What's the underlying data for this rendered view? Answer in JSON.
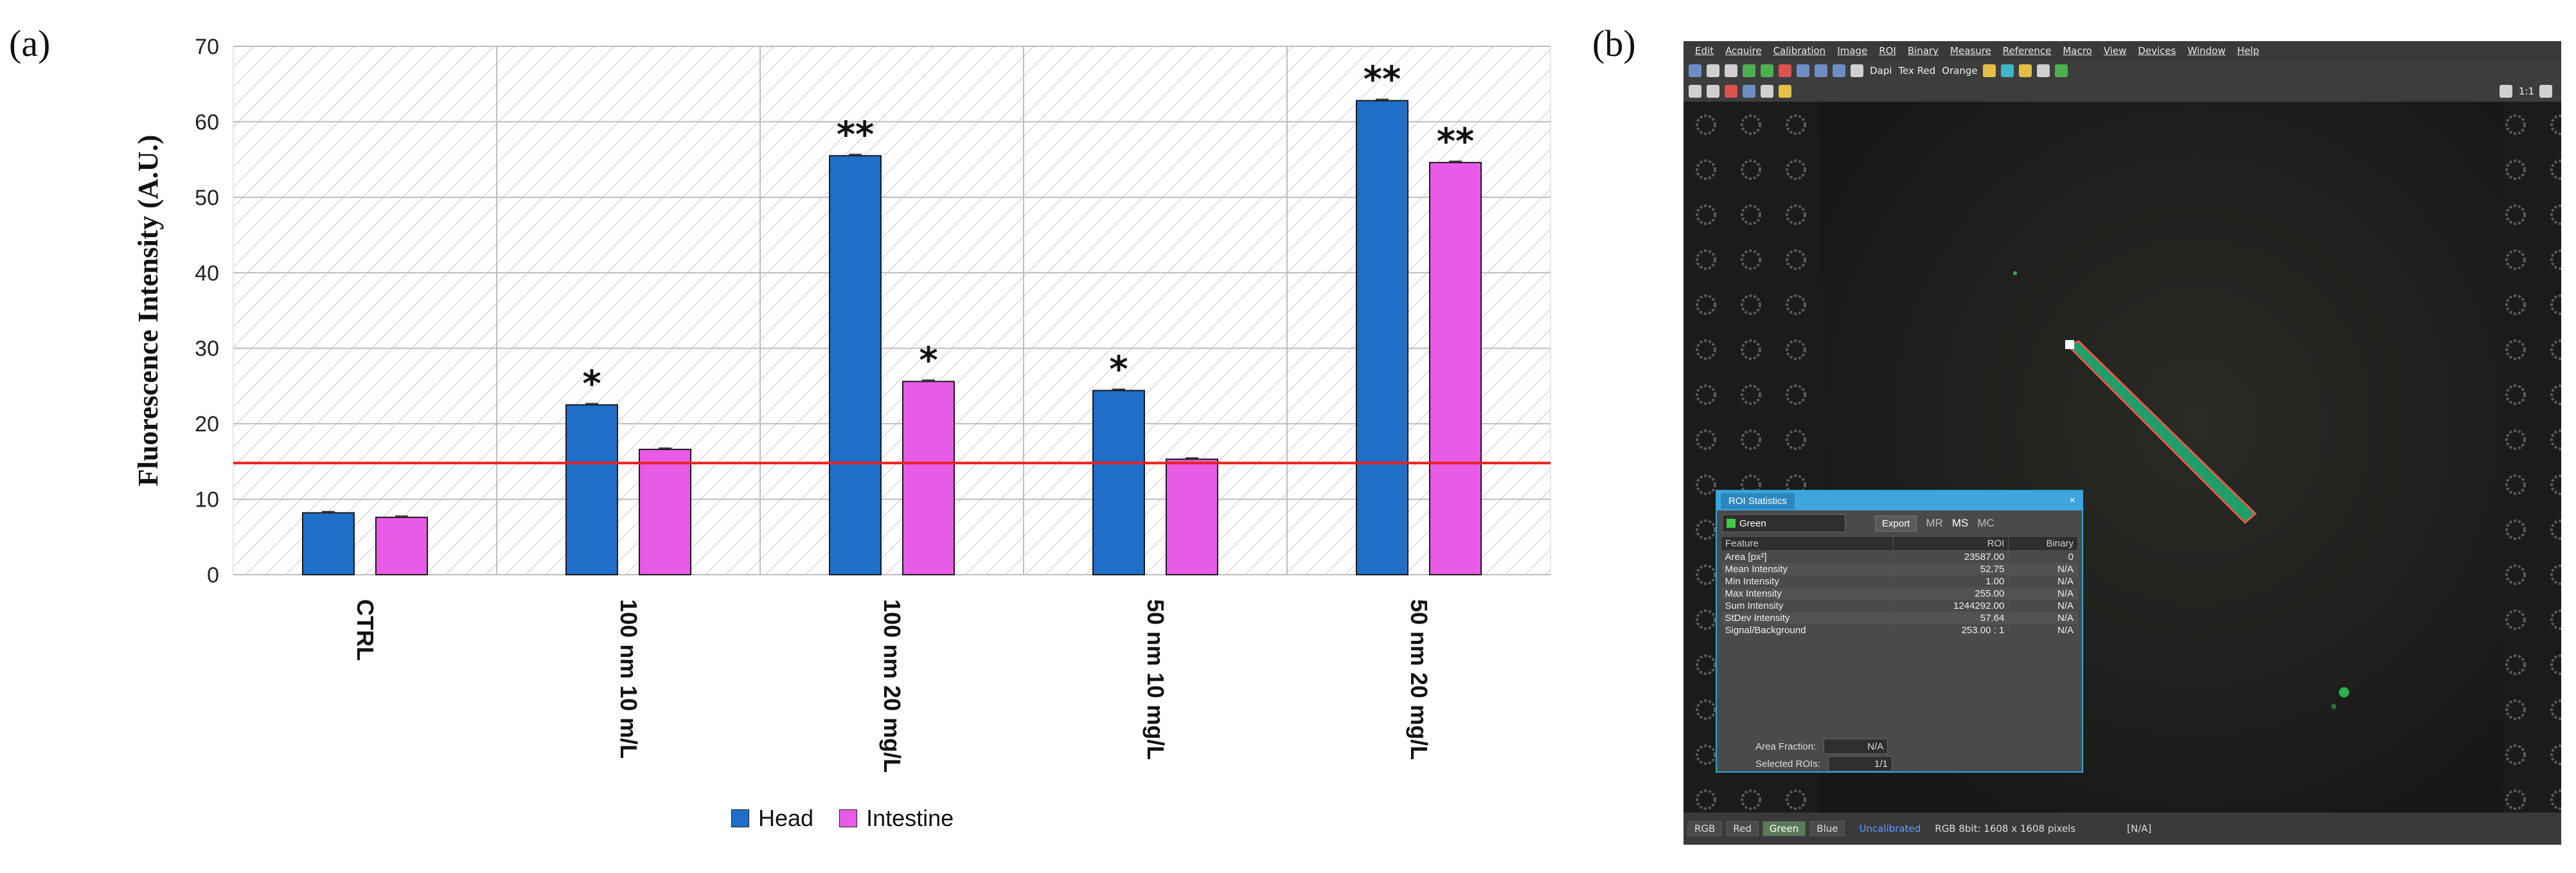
{
  "panel_labels": {
    "a": "(a)",
    "b": "(b)"
  },
  "chart_data": {
    "type": "bar",
    "title": "",
    "xlabel": "",
    "ylabel": "Fluorescence Intensity (A.U.)",
    "ylim": [
      0,
      70
    ],
    "yticks": [
      0,
      10,
      20,
      30,
      40,
      50,
      60,
      70
    ],
    "grid": true,
    "legend_position": "bottom",
    "categories": [
      "CTRL",
      "100 nm 10 m/L",
      "100 nm 20 mg/L",
      "50 nm 10 mg/L",
      "50 nm 20 mg/L"
    ],
    "series": [
      {
        "name": "Head",
        "color": "#1f6fc8",
        "values": [
          8.2,
          22.5,
          55.5,
          24.4,
          62.8
        ],
        "significance": [
          "",
          "*",
          "**",
          "*",
          "**"
        ]
      },
      {
        "name": "Intestine",
        "color": "#e85be6",
        "values": [
          7.6,
          16.6,
          25.6,
          15.3,
          54.6
        ],
        "significance": [
          "",
          "",
          "*",
          "",
          "**"
        ]
      }
    ],
    "reference_line": {
      "value": 14.8,
      "color": "#e8231e"
    }
  },
  "app": {
    "menu": [
      "Edit",
      "Acquire",
      "Calibration",
      "Image",
      "ROI",
      "Binary",
      "Measure",
      "Reference",
      "Macro",
      "View",
      "Devices",
      "Window",
      "Help"
    ],
    "toolbar_labels": [
      "Dapi",
      "Tex Red",
      "Orange"
    ],
    "zoom_label": "1:1",
    "status_tabs": [
      "RGB",
      "Red",
      "Green",
      "Blue"
    ],
    "status_active_tab": "Green",
    "status_uncalibrated": "Uncalibrated",
    "status_image_info": "RGB 8bit: 1608 x 1608 pixels",
    "status_na": "[N/A]"
  },
  "roi_stats": {
    "title": "ROI Statistics",
    "close": "×",
    "channel": "Green",
    "export": "Export",
    "mini_buttons": [
      "MR",
      "MS",
      "MC"
    ],
    "headers": [
      "Feature",
      "ROI",
      "Binary"
    ],
    "rows": [
      {
        "feature": "Area [px²]",
        "roi": "23587.00",
        "binary": "0"
      },
      {
        "feature": "Mean Intensity",
        "roi": "52.75",
        "binary": "N/A"
      },
      {
        "feature": "Min Intensity",
        "roi": "1.00",
        "binary": "N/A"
      },
      {
        "feature": "Max Intensity",
        "roi": "255.00",
        "binary": "N/A"
      },
      {
        "feature": "Sum Intensity",
        "roi": "1244292.00",
        "binary": "N/A"
      },
      {
        "feature": "StDev Intensity",
        "roi": "57.64",
        "binary": "N/A"
      },
      {
        "feature": "Signal/Background",
        "roi": "253.00 : 1",
        "binary": "N/A"
      }
    ],
    "area_fraction_label": "Area Fraction:",
    "area_fraction_value": "N/A",
    "selected_rois_label": "Selected ROIs:",
    "selected_rois_value": "1/1"
  }
}
